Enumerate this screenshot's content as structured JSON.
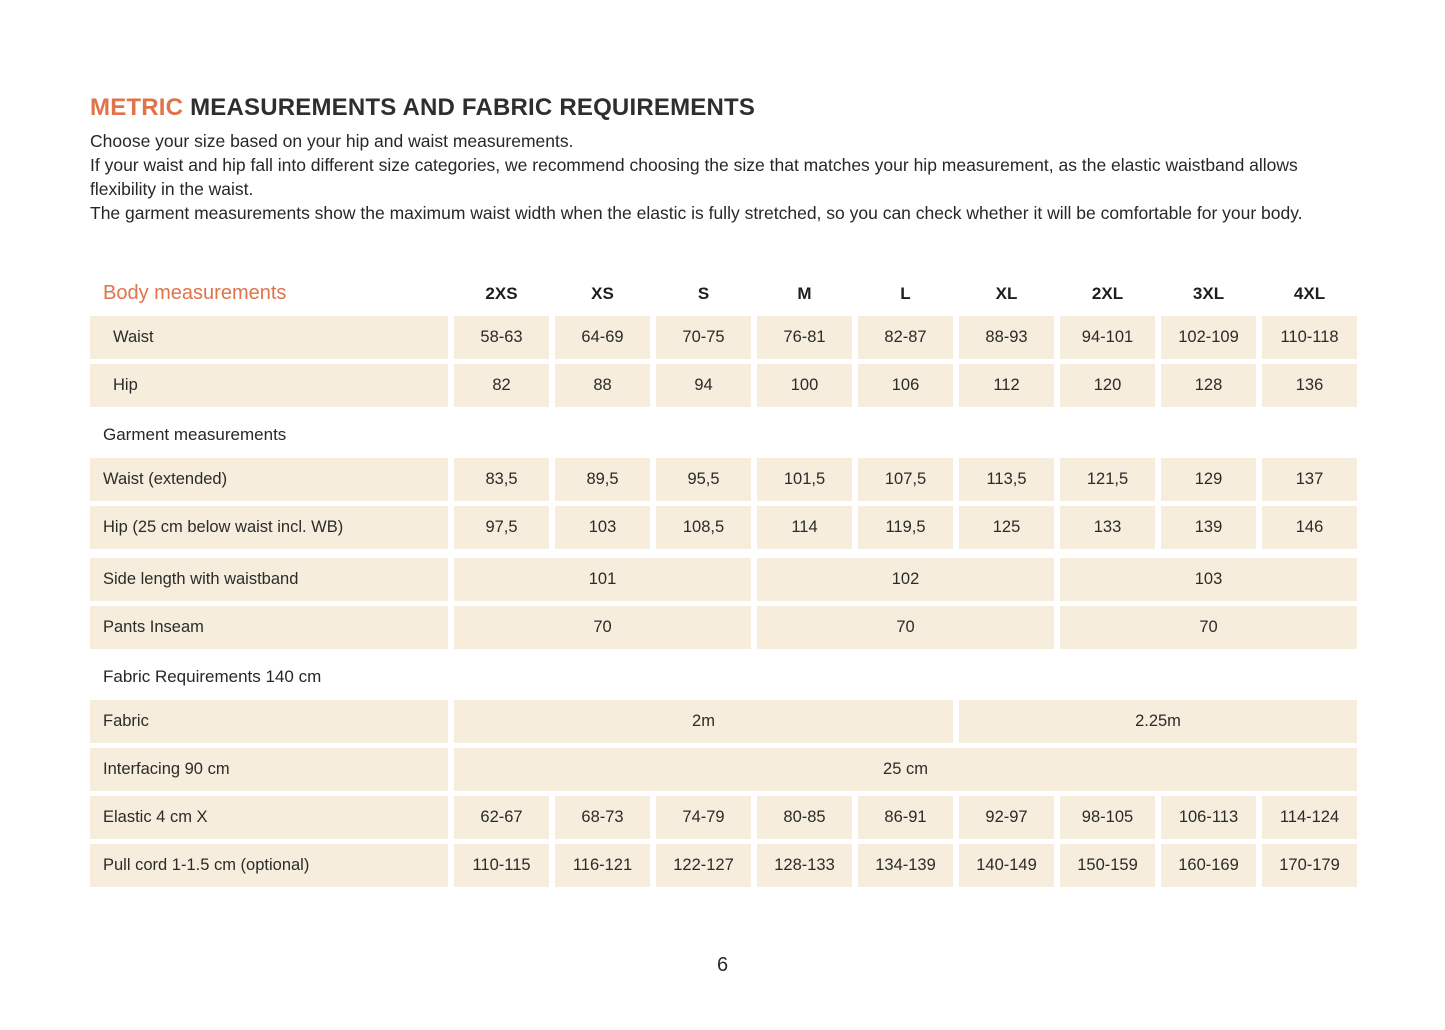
{
  "colors": {
    "accent": "#e0734a",
    "cell_background": "#f6eddc",
    "text": "#2b2b2b"
  },
  "header": {
    "title_highlight": "METRIC",
    "title_rest": " MEASUREMENTS AND FABRIC REQUIREMENTS",
    "intro": [
      "Choose your size based on your hip and waist measurements.",
      "If your waist and hip fall into different size categories, we recommend choosing the size that matches your hip measurement, as the elastic waistband allows flexibility in the waist.",
      "The garment measurements show the maximum waist width when the elastic is fully stretched, so you can check whether it will be comfortable for your body."
    ]
  },
  "table": {
    "header": {
      "label": "Body measurements",
      "sizes": [
        "2XS",
        "XS",
        "S",
        "M",
        "L",
        "XL",
        "2XL",
        "3XL",
        "4XL"
      ]
    },
    "sections": {
      "garment": "Garment measurements",
      "fabric": "Fabric Requirements 140 cm"
    },
    "rows": [
      {
        "label": "Waist",
        "values": [
          "58-63",
          "64-69",
          "70-75",
          "76-81",
          "82-87",
          "88-93",
          "94-101",
          "102-109",
          "110-118"
        ]
      },
      {
        "label": "Hip",
        "values": [
          "82",
          "88",
          "94",
          "100",
          "106",
          "112",
          "120",
          "128",
          "136"
        ]
      },
      {
        "label": "Waist (extended)",
        "values": [
          "83,5",
          "89,5",
          "95,5",
          "101,5",
          "107,5",
          "113,5",
          "121,5",
          "129",
          "137"
        ]
      },
      {
        "label": "Hip (25 cm below waist incl. WB)",
        "values": [
          "97,5",
          "103",
          "108,5",
          "114",
          "119,5",
          "125",
          "133",
          "139",
          "146"
        ]
      },
      {
        "label": "Side length with waistband",
        "values": [
          "101",
          "102",
          "103"
        ]
      },
      {
        "label": "Pants Inseam",
        "values": [
          "70",
          "70",
          "70"
        ]
      },
      {
        "label": "Fabric",
        "values": [
          "2m",
          "2.25m"
        ]
      },
      {
        "label": "Interfacing 90 cm",
        "values": [
          "25 cm"
        ]
      },
      {
        "label": "Elastic 4 cm X",
        "values": [
          "62-67",
          "68-73",
          "74-79",
          "80-85",
          "86-91",
          "92-97",
          "98-105",
          "106-113",
          "114-124"
        ]
      },
      {
        "label": "Pull cord 1-1.5 cm (optional)",
        "values": [
          "110-115",
          "116-121",
          "122-127",
          "128-133",
          "134-139",
          "140-149",
          "150-159",
          "160-169",
          "170-179"
        ]
      }
    ]
  },
  "footer": {
    "page_number": "6"
  }
}
